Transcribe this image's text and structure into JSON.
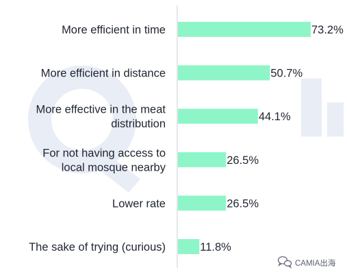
{
  "chart_data": {
    "type": "bar",
    "orientation": "horizontal",
    "categories": [
      [
        "More efficient in time"
      ],
      [
        "More efficient in distance"
      ],
      [
        "More effective in the meat",
        "distribution"
      ],
      [
        "For not having access to",
        "local mosque nearby"
      ],
      [
        "Lower rate"
      ],
      [
        "The sake of trying (curious)"
      ]
    ],
    "values": [
      73.2,
      50.7,
      44.1,
      26.5,
      26.5,
      11.8
    ],
    "value_labels": [
      "73.2%",
      "50.7%",
      "44.1%",
      "26.5%",
      "26.5%",
      "11.8%"
    ],
    "xlim": [
      0,
      100
    ],
    "bar_color": "#8ef5c8",
    "axis_color": "#c8ccd2",
    "grid": false,
    "legend": "none"
  },
  "watermark": {
    "text": "CAMIA出海",
    "logo_icon": "wechat-bubble-icon",
    "background_logo_color": "#e8edf6"
  }
}
